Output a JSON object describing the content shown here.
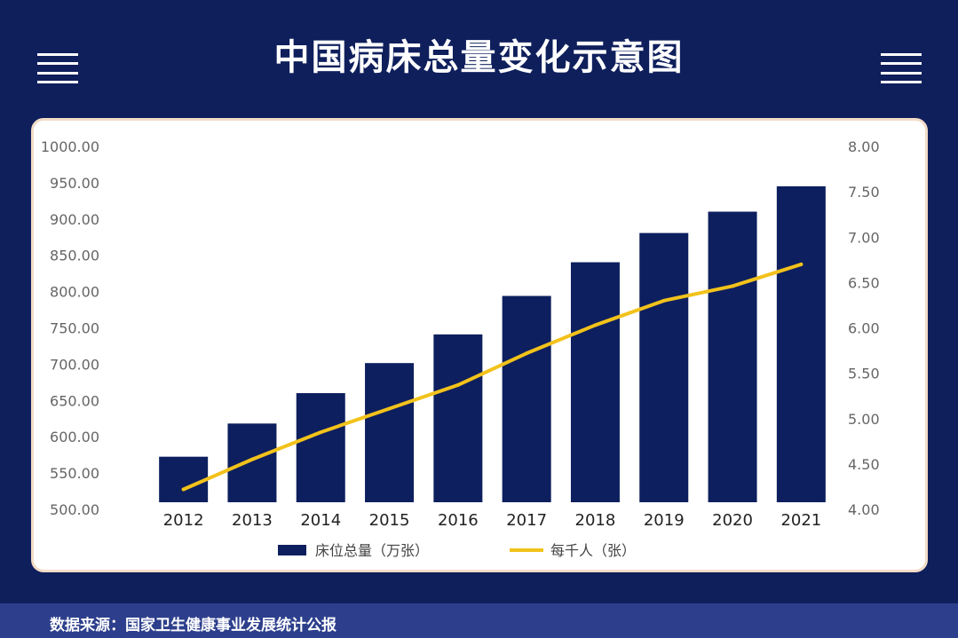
{
  "page": {
    "title": "中国病床总量变化示意图",
    "footer": "数据来源：国家卫生健康事业发展统计公报",
    "background_color": "#0f1f5c",
    "footer_color": "#2d3f8c"
  },
  "icons": {
    "left": "menu-icon",
    "right": "menu-icon"
  },
  "chart_data": {
    "type": "bar",
    "title": "",
    "categories": [
      "2012",
      "2013",
      "2014",
      "2015",
      "2016",
      "2017",
      "2018",
      "2019",
      "2020",
      "2021"
    ],
    "series": [
      {
        "name": "床位总量（万张）",
        "type": "bar",
        "axis": "left",
        "color": "#0d1f5e",
        "values": [
          572.5,
          618.2,
          660.1,
          701.5,
          741.0,
          794.0,
          840.4,
          880.7,
          910.1,
          945.0
        ]
      },
      {
        "name": "每千人（张）",
        "type": "line",
        "axis": "right",
        "color": "#f2c21b",
        "values": [
          4.22,
          4.55,
          4.85,
          5.11,
          5.37,
          5.72,
          6.03,
          6.3,
          6.46,
          6.7
        ]
      }
    ],
    "y_left": {
      "min": 500,
      "max": 1000,
      "step": 50,
      "decimals": 2
    },
    "y_right": {
      "min": 4.0,
      "max": 8.0,
      "step": 0.5,
      "decimals": 2
    },
    "grid": false,
    "legend_position": "bottom"
  }
}
